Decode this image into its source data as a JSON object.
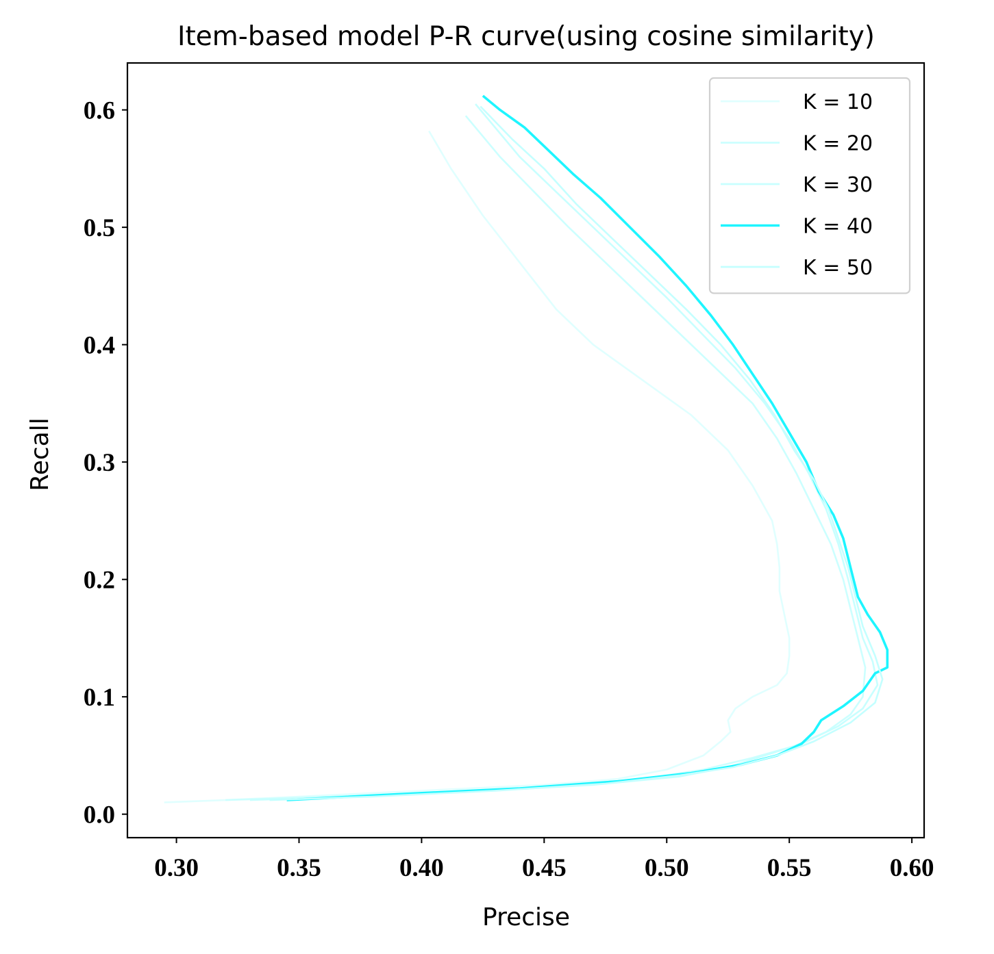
{
  "chart_data": {
    "type": "line",
    "title": "Item-based model P-R curve(using cosine similarity)",
    "xlabel": "Precise",
    "ylabel": "Recall",
    "xlim": [
      0.28,
      0.605
    ],
    "ylim": [
      -0.02,
      0.64
    ],
    "xticks": [
      0.3,
      0.35,
      0.4,
      0.45,
      0.5,
      0.55,
      0.6
    ],
    "xtick_labels": [
      "0.30",
      "0.35",
      "0.40",
      "0.45",
      "0.50",
      "0.55",
      "0.60"
    ],
    "yticks": [
      0.0,
      0.1,
      0.2,
      0.3,
      0.4,
      0.5,
      0.6
    ],
    "ytick_labels": [
      "0.0",
      "0.1",
      "0.2",
      "0.3",
      "0.4",
      "0.5",
      "0.6"
    ],
    "grid": false,
    "legend_position": "top-right",
    "series": [
      {
        "name": "K = 10",
        "color": "#e0ffff",
        "x": [
          0.295,
          0.32,
          0.36,
          0.4,
          0.45,
          0.48,
          0.5,
          0.515,
          0.522,
          0.526,
          0.525,
          0.528,
          0.535,
          0.545,
          0.549,
          0.55,
          0.55,
          0.548,
          0.546,
          0.546,
          0.545,
          0.543,
          0.535,
          0.525,
          0.51,
          0.49,
          0.47,
          0.455,
          0.44,
          0.425,
          0.412,
          0.403
        ],
        "y": [
          0.01,
          0.012,
          0.016,
          0.02,
          0.025,
          0.03,
          0.038,
          0.05,
          0.062,
          0.07,
          0.08,
          0.09,
          0.1,
          0.11,
          0.12,
          0.135,
          0.15,
          0.17,
          0.19,
          0.21,
          0.23,
          0.25,
          0.28,
          0.31,
          0.34,
          0.37,
          0.4,
          0.43,
          0.47,
          0.51,
          0.55,
          0.582
        ]
      },
      {
        "name": "K = 20",
        "color": "#ccffff",
        "x": [
          0.32,
          0.35,
          0.4,
          0.45,
          0.49,
          0.515,
          0.535,
          0.552,
          0.565,
          0.575,
          0.58,
          0.581,
          0.578,
          0.575,
          0.572,
          0.567,
          0.56,
          0.553,
          0.545,
          0.535,
          0.52,
          0.505,
          0.49,
          0.475,
          0.46,
          0.446,
          0.432,
          0.418
        ],
        "y": [
          0.012,
          0.014,
          0.018,
          0.023,
          0.03,
          0.038,
          0.048,
          0.058,
          0.07,
          0.085,
          0.1,
          0.125,
          0.15,
          0.175,
          0.2,
          0.23,
          0.26,
          0.29,
          0.32,
          0.35,
          0.38,
          0.41,
          0.44,
          0.47,
          0.5,
          0.53,
          0.56,
          0.595
        ]
      },
      {
        "name": "K = 30",
        "color": "#c8ffff",
        "x": [
          0.33,
          0.37,
          0.42,
          0.47,
          0.505,
          0.525,
          0.54,
          0.555,
          0.57,
          0.58,
          0.586,
          0.584,
          0.58,
          0.577,
          0.574,
          0.57,
          0.565,
          0.558,
          0.55,
          0.54,
          0.528,
          0.514,
          0.5,
          0.485,
          0.47,
          0.455,
          0.44,
          0.422
        ],
        "y": [
          0.012,
          0.015,
          0.019,
          0.025,
          0.032,
          0.04,
          0.05,
          0.06,
          0.075,
          0.09,
          0.11,
          0.13,
          0.15,
          0.175,
          0.2,
          0.23,
          0.26,
          0.29,
          0.32,
          0.35,
          0.38,
          0.41,
          0.44,
          0.47,
          0.5,
          0.53,
          0.56,
          0.605
        ]
      },
      {
        "name": "K = 40",
        "color": "#1ef5ff",
        "x": [
          0.345,
          0.39,
          0.44,
          0.48,
          0.51,
          0.53,
          0.545,
          0.555,
          0.56,
          0.563,
          0.572,
          0.58,
          0.585,
          0.59,
          0.59,
          0.587,
          0.582,
          0.578,
          0.575,
          0.572,
          0.568,
          0.562,
          0.557,
          0.55,
          0.543,
          0.535,
          0.527,
          0.518,
          0.508,
          0.497,
          0.485,
          0.473,
          0.462,
          0.452,
          0.442,
          0.432,
          0.425
        ],
        "y": [
          0.012,
          0.017,
          0.022,
          0.028,
          0.035,
          0.042,
          0.05,
          0.06,
          0.07,
          0.08,
          0.092,
          0.105,
          0.12,
          0.125,
          0.14,
          0.155,
          0.17,
          0.185,
          0.21,
          0.235,
          0.255,
          0.275,
          0.3,
          0.325,
          0.35,
          0.375,
          0.4,
          0.425,
          0.45,
          0.475,
          0.5,
          0.525,
          0.545,
          0.565,
          0.585,
          0.6,
          0.612
        ]
      },
      {
        "name": "K = 50",
        "color": "#c4ffff",
        "x": [
          0.338,
          0.38,
          0.43,
          0.475,
          0.505,
          0.527,
          0.545,
          0.56,
          0.575,
          0.585,
          0.588,
          0.585,
          0.58,
          0.577,
          0.574,
          0.57,
          0.566,
          0.56,
          0.552,
          0.544,
          0.534,
          0.522,
          0.508,
          0.493,
          0.478,
          0.463,
          0.45,
          0.437,
          0.424
        ],
        "y": [
          0.012,
          0.015,
          0.02,
          0.026,
          0.033,
          0.04,
          0.05,
          0.062,
          0.078,
          0.095,
          0.115,
          0.135,
          0.16,
          0.185,
          0.21,
          0.235,
          0.26,
          0.285,
          0.31,
          0.34,
          0.37,
          0.4,
          0.43,
          0.46,
          0.49,
          0.52,
          0.55,
          0.575,
          0.603
        ]
      }
    ]
  }
}
